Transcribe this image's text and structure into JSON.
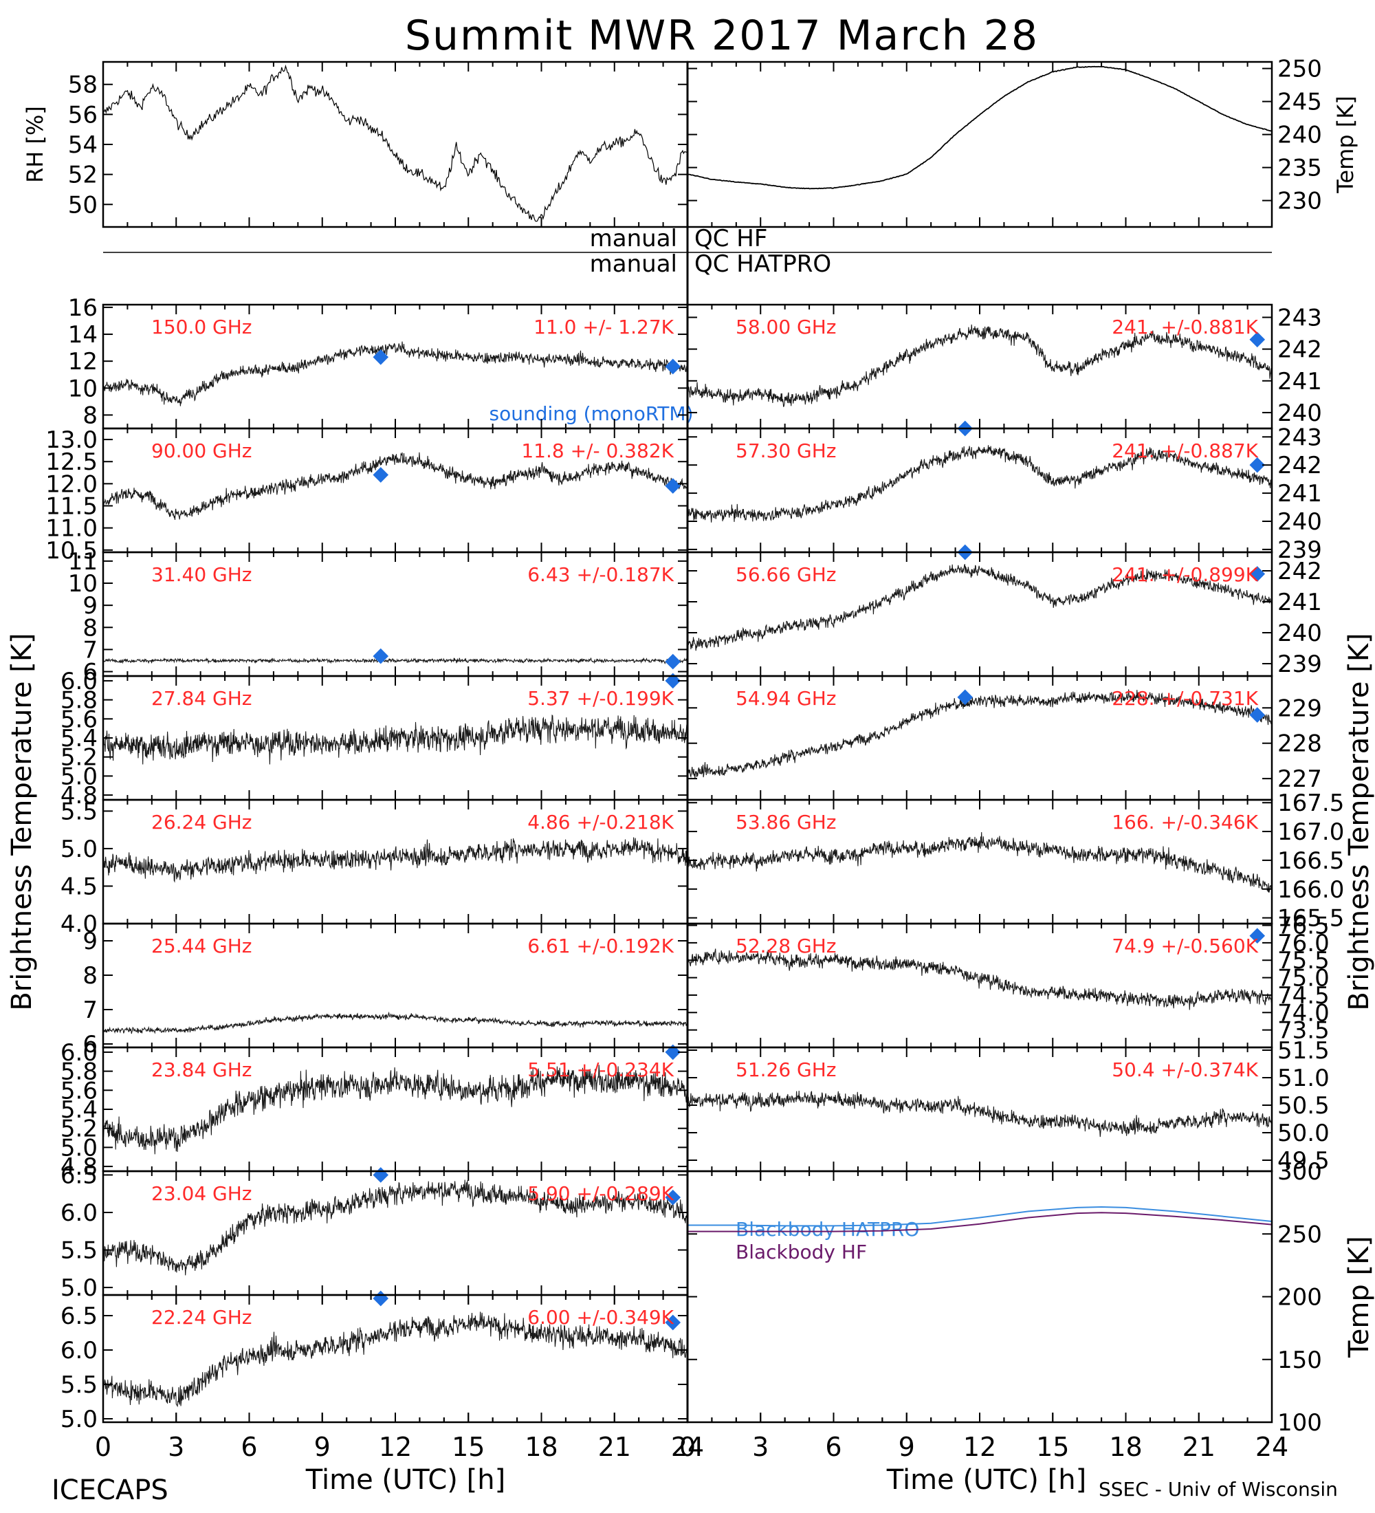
{
  "title": "Summit MWR 2017 March 28",
  "colors": {
    "data": "#000000",
    "channel_text": "#ff2a2a",
    "sounding": "#1f6fe0",
    "bb_hatpro": "#3a8de0",
    "bb_hf": "#6a1a6a"
  },
  "footer": {
    "left": "ICECAPS",
    "right": "SSEC - Univ of Wisconsin"
  },
  "qc": {
    "hf_left": "manual",
    "hf_right": "QC HF",
    "hatpro_left": "manual",
    "hatpro_right": "QC HATPRO"
  },
  "chart_data": [
    {
      "id": "rh",
      "type": "line",
      "ylabel": "RH [%]",
      "ylim": [
        48.5,
        59.5
      ],
      "yticks": [
        "50",
        "52",
        "54",
        "56",
        "58"
      ],
      "xlim": [
        0,
        24
      ],
      "x": [
        0,
        0.5,
        1,
        1.5,
        2,
        2.5,
        3,
        3.5,
        4,
        4.5,
        5,
        5.5,
        6,
        6.5,
        7,
        7.5,
        8,
        8.5,
        9,
        9.5,
        10,
        10.5,
        11,
        11.5,
        12,
        12.5,
        13,
        13.5,
        14,
        14.5,
        15,
        15.5,
        16,
        16.5,
        17,
        17.5,
        18,
        18.5,
        19,
        19.5,
        20,
        20.5,
        21,
        21.5,
        22,
        22.5,
        23,
        23.5,
        23.8
      ],
      "y": [
        56,
        56.8,
        57.5,
        56.5,
        57.8,
        57.2,
        55.5,
        54.5,
        55.2,
        55.8,
        56.5,
        57,
        57.8,
        57.3,
        58.5,
        59.2,
        57,
        57.8,
        57.5,
        56.8,
        55.5,
        55.8,
        55,
        54.6,
        53.2,
        52.4,
        52,
        51.6,
        50.9,
        53.8,
        52,
        53.5,
        52.2,
        51,
        50,
        49.3,
        49,
        50.5,
        51.8,
        53.5,
        53,
        53.8,
        54,
        54.3,
        54.8,
        53,
        51.4,
        52,
        53.5
      ]
    },
    {
      "id": "temp",
      "type": "line",
      "ylabel": "Temp [K]",
      "ylim": [
        226,
        251
      ],
      "yticks": [
        "230",
        "235",
        "240",
        "245",
        "250"
      ],
      "xlim": [
        0,
        24
      ],
      "x": [
        0,
        1,
        2,
        3,
        4,
        5,
        6,
        7,
        8,
        9,
        10,
        11,
        12,
        13,
        14,
        15,
        16,
        17,
        18,
        19,
        20,
        21,
        22,
        23,
        24
      ],
      "y": [
        234,
        233.2,
        232.8,
        232.5,
        232,
        231.8,
        231.9,
        232.4,
        233,
        234,
        236.5,
        240,
        243,
        245.8,
        248,
        249.5,
        250.2,
        250.3,
        249.8,
        248.5,
        247,
        245,
        243,
        241.5,
        240.5
      ]
    },
    {
      "id": "ch150",
      "type": "scatter",
      "label": "150.0 GHz",
      "stat": "11.0 +/- 1.27K",
      "ylim": [
        7,
        16.2
      ],
      "yticks": [
        "8",
        "10",
        "12",
        "14",
        "16"
      ],
      "trend": [
        10,
        10.3,
        9.9,
        9,
        10,
        11,
        11.2,
        11.4,
        11.6,
        12.1,
        12.6,
        12.9,
        13,
        12.6,
        12.5,
        12.3,
        12.2,
        12.3,
        12.1,
        12.2,
        12,
        11.9,
        11.8,
        11.7,
        11.5
      ],
      "noise": 0.8,
      "markers": [
        [
          11.4,
          12.3
        ],
        [
          23.4,
          11.6
        ]
      ],
      "extra_label": "sounding (monoRTM)"
    },
    {
      "id": "ch90",
      "type": "scatter",
      "label": "90.00 GHz",
      "stat": "11.8 +/- 0.382K",
      "ylim": [
        10.45,
        13.25
      ],
      "yticks": [
        "10.5",
        "11.0",
        "11.5",
        "12.0",
        "12.5",
        "13.0"
      ],
      "trend": [
        11.6,
        11.8,
        11.7,
        11.3,
        11.4,
        11.7,
        11.8,
        11.9,
        12,
        12.1,
        12.2,
        12.4,
        12.6,
        12.5,
        12.3,
        12.1,
        12,
        12.2,
        12.3,
        12.1,
        12.3,
        12.4,
        12.3,
        12.1,
        11.9
      ],
      "noise": 0.28,
      "markers": [
        [
          11.4,
          12.2
        ],
        [
          23.4,
          11.95
        ]
      ]
    },
    {
      "id": "ch3140",
      "type": "scatter",
      "label": "31.40 GHz",
      "stat": "6.43 +/-0.187K",
      "ylim": [
        5.8,
        11.4
      ],
      "yticks": [
        "6",
        "7",
        "8",
        "9",
        "10",
        "11"
      ],
      "trend": [
        6.5,
        6.5,
        6.5,
        6.5,
        6.5,
        6.5,
        6.5,
        6.5,
        6.5,
        6.5,
        6.5,
        6.5,
        6.5,
        6.5,
        6.5,
        6.5,
        6.5,
        6.5,
        6.5,
        6.5,
        6.5,
        6.5,
        6.5,
        6.5,
        6.5
      ],
      "noise": 0.15,
      "markers": [
        [
          11.4,
          6.7
        ],
        [
          23.4,
          6.45
        ]
      ]
    },
    {
      "id": "ch2784",
      "type": "scatter",
      "label": "27.84 GHz",
      "stat": "5.37 +/-0.199K",
      "ylim": [
        4.75,
        6.05
      ],
      "yticks": [
        "4.8",
        "5.0",
        "5.2",
        "5.4",
        "5.6",
        "5.8",
        "6.0"
      ],
      "trend": [
        5.35,
        5.3,
        5.3,
        5.3,
        5.35,
        5.35,
        5.35,
        5.35,
        5.35,
        5.35,
        5.35,
        5.35,
        5.4,
        5.4,
        5.4,
        5.4,
        5.45,
        5.5,
        5.5,
        5.5,
        5.5,
        5.5,
        5.5,
        5.45,
        5.4
      ],
      "noise": 0.25,
      "markers": [
        [
          23.4,
          6.0
        ]
      ]
    },
    {
      "id": "ch2624",
      "type": "scatter",
      "label": "26.24 GHz",
      "stat": "4.86 +/-0.218K",
      "ylim": [
        4.0,
        5.65
      ],
      "yticks": [
        "4.0",
        "4.5",
        "5.0",
        "5.5"
      ],
      "trend": [
        4.8,
        4.8,
        4.75,
        4.7,
        4.75,
        4.8,
        4.8,
        4.85,
        4.85,
        4.85,
        4.85,
        4.85,
        4.9,
        4.9,
        4.9,
        4.95,
        4.95,
        5,
        5,
        5,
        5,
        5,
        5,
        4.95,
        4.9
      ],
      "noise": 0.25,
      "markers": []
    },
    {
      "id": "ch2544",
      "type": "scatter",
      "label": "25.44 GHz",
      "stat": "6.61 +/-0.192K",
      "ylim": [
        5.9,
        9.5
      ],
      "yticks": [
        "6",
        "7",
        "8",
        "9"
      ],
      "trend": [
        6.4,
        6.4,
        6.4,
        6.4,
        6.45,
        6.5,
        6.6,
        6.7,
        6.75,
        6.8,
        6.8,
        6.8,
        6.8,
        6.8,
        6.7,
        6.7,
        6.7,
        6.6,
        6.6,
        6.6,
        6.6,
        6.6,
        6.6,
        6.6,
        6.6
      ],
      "noise": 0.15,
      "markers": []
    },
    {
      "id": "ch2384",
      "type": "scatter",
      "label": "23.84 GHz",
      "stat": "5.51 +/-0.234K",
      "ylim": [
        4.75,
        6.05
      ],
      "yticks": [
        "4.8",
        "5.0",
        "5.2",
        "5.4",
        "5.6",
        "5.8",
        "6.0"
      ],
      "trend": [
        5.2,
        5.1,
        5.1,
        5.1,
        5.2,
        5.4,
        5.5,
        5.55,
        5.6,
        5.65,
        5.65,
        5.65,
        5.7,
        5.65,
        5.65,
        5.6,
        5.6,
        5.65,
        5.7,
        5.7,
        5.7,
        5.7,
        5.7,
        5.65,
        5.6
      ],
      "noise": 0.25,
      "markers": [
        [
          23.4,
          6.0
        ]
      ]
    },
    {
      "id": "ch2304",
      "type": "scatter",
      "label": "23.04 GHz",
      "stat": "5.90 +/-0.289K",
      "ylim": [
        4.9,
        6.55
      ],
      "yticks": [
        "5.0",
        "5.5",
        "6.0",
        "6.5"
      ],
      "trend": [
        5.5,
        5.5,
        5.45,
        5.3,
        5.35,
        5.6,
        5.9,
        6,
        6,
        6.05,
        6.1,
        6.2,
        6.25,
        6.3,
        6.3,
        6.3,
        6.25,
        6.2,
        6.15,
        6.1,
        6.1,
        6.15,
        6.15,
        6.1,
        5.95
      ],
      "noise": 0.25,
      "markers": [
        [
          11.4,
          6.5
        ],
        [
          23.4,
          6.2
        ]
      ]
    },
    {
      "id": "ch2224",
      "type": "scatter",
      "label": "22.24 GHz",
      "stat": "6.00 +/-0.349K",
      "ylim": [
        4.95,
        6.8
      ],
      "yticks": [
        "5.0",
        "5.5",
        "6.0",
        "6.5"
      ],
      "trend": [
        5.5,
        5.4,
        5.4,
        5.3,
        5.5,
        5.8,
        5.9,
        6,
        6,
        6.05,
        6.1,
        6.2,
        6.3,
        6.35,
        6.35,
        6.4,
        6.35,
        6.3,
        6.25,
        6.2,
        6.2,
        6.2,
        6.15,
        6.1,
        6.0
      ],
      "noise": 0.3,
      "markers": [
        [
          11.4,
          6.75
        ],
        [
          23.4,
          6.4
        ]
      ]
    },
    {
      "id": "ch5800",
      "type": "scatter",
      "label": "58.00 GHz",
      "stat": "241. +/-0.881K",
      "ylim": [
        239.5,
        243.4
      ],
      "yticks": [
        "240",
        "241",
        "242",
        "243"
      ],
      "trend": [
        240.7,
        240.6,
        240.5,
        240.6,
        240.4,
        240.5,
        240.7,
        240.9,
        241.4,
        241.8,
        242.2,
        242.4,
        242.6,
        242.5,
        242.3,
        241.4,
        241.4,
        241.8,
        242.1,
        242.4,
        242.3,
        242.1,
        241.9,
        241.7,
        241.3
      ],
      "noise": 0.4,
      "markers": [
        [
          23.4,
          242.3
        ]
      ]
    },
    {
      "id": "ch5730",
      "type": "scatter",
      "label": "57.30 GHz",
      "stat": "241. +/-0.887K",
      "ylim": [
        238.9,
        243.3
      ],
      "yticks": [
        "239",
        "240",
        "241",
        "242",
        "243"
      ],
      "trend": [
        240.3,
        240.2,
        240.3,
        240.2,
        240.3,
        240.4,
        240.6,
        240.8,
        241.2,
        241.7,
        242.1,
        242.4,
        242.5,
        242.4,
        242.1,
        241.4,
        241.5,
        241.8,
        242.1,
        242.4,
        242.3,
        242.0,
        241.8,
        241.6,
        241.4
      ],
      "noise": 0.4,
      "markers": [
        [
          23.4,
          242.0
        ],
        [
          11.4,
          243.3
        ]
      ]
    },
    {
      "id": "ch5666",
      "type": "scatter",
      "label": "56.66 GHz",
      "stat": "241. +/-0.899K",
      "ylim": [
        238.6,
        242.6
      ],
      "yticks": [
        "239",
        "240",
        "241",
        "242"
      ],
      "trend": [
        239.6,
        239.7,
        239.9,
        240,
        240.2,
        240.3,
        240.4,
        240.7,
        241.0,
        241.4,
        241.8,
        242.0,
        242.0,
        241.8,
        241.5,
        241.0,
        241.1,
        241.4,
        241.7,
        241.9,
        241.8,
        241.6,
        241.4,
        241.2,
        241.0
      ],
      "noise": 0.35,
      "markers": [
        [
          23.4,
          241.9
        ],
        [
          11.4,
          242.6
        ]
      ]
    },
    {
      "id": "ch5494",
      "type": "scatter",
      "label": "54.94 GHz",
      "stat": "228. +/-0.731K",
      "ylim": [
        226.4,
        229.9
      ],
      "yticks": [
        "227",
        "228",
        "229"
      ],
      "trend": [
        227.2,
        227.2,
        227.3,
        227.4,
        227.6,
        227.8,
        227.9,
        228.1,
        228.3,
        228.6,
        228.9,
        229.1,
        229.2,
        229.2,
        229.2,
        229.2,
        229.3,
        229.3,
        229.3,
        229.3,
        229.2,
        229.1,
        229.0,
        228.9,
        228.7
      ],
      "noise": 0.3,
      "markers": [
        [
          11.4,
          229.3
        ],
        [
          23.4,
          228.8
        ]
      ]
    },
    {
      "id": "ch5386",
      "type": "scatter",
      "label": "53.86 GHz",
      "stat": "166. +/-0.346K",
      "ylim": [
        165.4,
        167.55
      ],
      "yticks": [
        "165.5",
        "166.0",
        "166.5",
        "167.0",
        "167.5"
      ],
      "trend": [
        166.4,
        166.5,
        166.5,
        166.5,
        166.6,
        166.6,
        166.6,
        166.6,
        166.7,
        166.7,
        166.7,
        166.8,
        166.8,
        166.8,
        166.7,
        166.7,
        166.6,
        166.6,
        166.6,
        166.6,
        166.5,
        166.4,
        166.3,
        166.2,
        166.0
      ],
      "noise": 0.25,
      "markers": []
    },
    {
      "id": "ch5228",
      "type": "scatter",
      "label": "52.28 GHz",
      "stat": "74.9 +/-0.560K",
      "ylim": [
        73.0,
        76.55
      ],
      "yticks": [
        "73.5",
        "74.0",
        "74.5",
        "75.0",
        "75.5",
        "76.0",
        "76.5"
      ],
      "trend": [
        75.5,
        75.6,
        75.6,
        75.6,
        75.5,
        75.5,
        75.5,
        75.4,
        75.4,
        75.4,
        75.3,
        75.2,
        75.0,
        74.8,
        74.6,
        74.6,
        74.5,
        74.5,
        74.4,
        74.4,
        74.3,
        74.4,
        74.5,
        74.5,
        74.4
      ],
      "noise": 0.35,
      "markers": [
        [
          23.4,
          76.2
        ]
      ]
    },
    {
      "id": "ch5126",
      "type": "scatter",
      "label": "51.26 GHz",
      "stat": "50.4 +/-0.374K",
      "ylim": [
        49.3,
        51.55
      ],
      "yticks": [
        "49.5",
        "50.0",
        "50.5",
        "51.0",
        "51.5"
      ],
      "trend": [
        50.6,
        50.6,
        50.6,
        50.6,
        50.6,
        50.6,
        50.6,
        50.6,
        50.5,
        50.5,
        50.5,
        50.5,
        50.4,
        50.3,
        50.2,
        50.2,
        50.2,
        50.1,
        50.1,
        50.1,
        50.2,
        50.2,
        50.3,
        50.3,
        50.2
      ],
      "noise": 0.25,
      "markers": []
    },
    {
      "id": "blackbody",
      "type": "line",
      "ylabel": "Temp [K]",
      "ylim": [
        100,
        300
      ],
      "yticks": [
        "100",
        "150",
        "200",
        "250",
        "300"
      ],
      "series": [
        {
          "name": "Blackbody HATPRO",
          "x": [
            0,
            2,
            4,
            6,
            8,
            10,
            12,
            14,
            16,
            17,
            18,
            20,
            22,
            24
          ],
          "y": [
            257,
            257,
            256.5,
            256.5,
            257,
            258.5,
            263,
            268,
            271,
            271.5,
            271,
            268,
            264,
            260
          ]
        },
        {
          "name": "Blackbody HF",
          "x": [
            0,
            2,
            4,
            6,
            8,
            10,
            12,
            14,
            16,
            17,
            18,
            20,
            22,
            24
          ],
          "y": [
            252,
            252,
            252,
            252,
            252.5,
            254,
            258,
            263,
            266.5,
            267,
            266.5,
            264,
            261,
            257.5
          ]
        }
      ]
    }
  ],
  "axes": {
    "xlabel": "Time (UTC) [h]",
    "xticks": [
      "0",
      "3",
      "6",
      "9",
      "12",
      "15",
      "18",
      "21",
      "24"
    ],
    "ylabel_left": "Brightness Temperature [K]",
    "ylabel_right": "Brightness Temperature [K]"
  }
}
